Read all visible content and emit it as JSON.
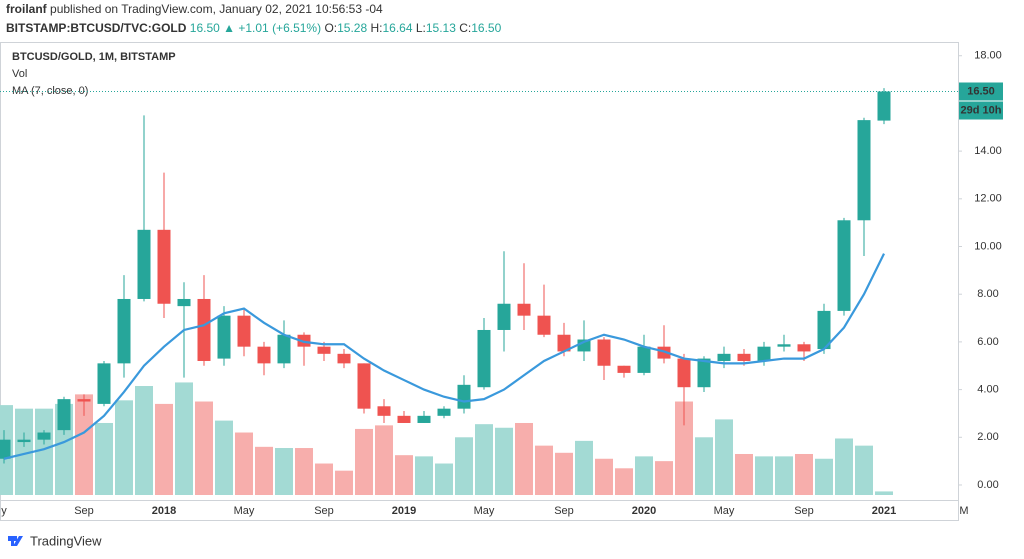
{
  "header": {
    "publisher": "froilanf",
    "published": "published on TradingView.com, January 02, 2021 10:56:53 -04",
    "symbol": "BITSTAMP:BTCUSD/TVC:GOLD",
    "last": "16.50",
    "change": "▲ +1.01 (+6.51%)",
    "o_label": "O:",
    "o": "15.28",
    "h_label": "H:",
    "h": "16.64",
    "l_label": "L:",
    "l": "15.13",
    "c_label": "C:",
    "c": "16.50"
  },
  "chart_data": {
    "type": "candlestick",
    "legend": [
      "BTCUSD/GOLD, 1M, BITSTAMP",
      "Vol",
      "MA (7, close, 0)"
    ],
    "categories": [
      "y",
      null,
      null,
      null,
      "Sep",
      null,
      null,
      null,
      "2018",
      null,
      null,
      null,
      "May",
      null,
      null,
      null,
      "Sep",
      null,
      null,
      null,
      "2019",
      null,
      null,
      null,
      "May",
      null,
      null,
      null,
      "Sep",
      null,
      null,
      null,
      "2020",
      null,
      null,
      null,
      "May",
      null,
      null,
      null,
      "Sep",
      null,
      null,
      null,
      "2021",
      null,
      null,
      null,
      "M"
    ],
    "open": [
      1.1,
      1.8,
      1.9,
      2.3,
      3.6,
      3.4,
      5.1,
      7.8,
      10.7,
      7.5,
      7.8,
      5.3,
      7.1,
      5.8,
      5.1,
      6.3,
      5.8,
      5.5,
      5.1,
      3.3,
      2.9,
      2.6,
      2.9,
      3.2,
      4.1,
      6.5,
      7.6,
      7.1,
      6.3,
      5.6,
      6.1,
      5.0,
      4.7,
      5.8,
      5.3,
      4.1,
      5.2,
      5.5,
      5.2,
      5.8,
      5.9,
      5.7,
      7.3,
      11.1,
      15.28,
      null,
      null,
      null,
      null
    ],
    "high": [
      2.3,
      2.2,
      2.3,
      3.7,
      3.8,
      5.2,
      8.8,
      15.5,
      13.1,
      8.5,
      8.8,
      7.5,
      7.4,
      6.0,
      6.9,
      6.4,
      6.0,
      5.7,
      5.1,
      3.6,
      3.1,
      3.1,
      3.3,
      4.6,
      7.0,
      9.8,
      9.3,
      8.4,
      6.8,
      6.9,
      6.2,
      5.0,
      6.3,
      6.7,
      5.5,
      5.4,
      5.8,
      5.7,
      6.0,
      6.3,
      6.0,
      7.6,
      11.2,
      15.4,
      16.64,
      null,
      null,
      null,
      null
    ],
    "low": [
      0.9,
      1.6,
      1.7,
      2.1,
      2.9,
      3.3,
      4.5,
      7.7,
      7.0,
      4.5,
      5.0,
      5.0,
      5.4,
      4.6,
      4.9,
      5.0,
      5.2,
      4.9,
      3.0,
      2.6,
      2.6,
      2.6,
      2.8,
      3.0,
      4.0,
      5.6,
      6.5,
      6.2,
      5.4,
      5.2,
      4.4,
      4.5,
      4.6,
      5.1,
      2.5,
      3.9,
      4.9,
      5.0,
      5.0,
      5.6,
      5.2,
      5.5,
      7.1,
      9.6,
      15.13,
      null,
      null,
      null,
      null
    ],
    "close": [
      1.9,
      1.9,
      2.2,
      3.6,
      3.5,
      5.1,
      7.8,
      10.7,
      7.6,
      7.8,
      5.2,
      7.1,
      5.8,
      5.1,
      6.3,
      5.8,
      5.5,
      5.1,
      3.2,
      2.9,
      2.6,
      2.9,
      3.2,
      4.2,
      6.5,
      7.6,
      7.1,
      6.3,
      5.6,
      6.1,
      5.0,
      4.7,
      5.8,
      5.3,
      4.1,
      5.3,
      5.5,
      5.2,
      5.8,
      5.9,
      5.6,
      7.3,
      11.1,
      15.3,
      16.5,
      null,
      null,
      null,
      null
    ],
    "volume": {
      "name": "Vol",
      "values": [
        3.77,
        3.62,
        3.62,
        3.82,
        4.22,
        3.02,
        3.97,
        4.57,
        3.82,
        4.72,
        3.92,
        3.12,
        2.62,
        2.02,
        1.97,
        1.97,
        1.32,
        1.02,
        2.77,
        2.92,
        1.67,
        1.62,
        1.32,
        2.42,
        2.97,
        2.82,
        3.02,
        2.07,
        1.77,
        2.27,
        1.52,
        1.12,
        1.62,
        1.42,
        3.92,
        2.42,
        3.17,
        1.72,
        1.62,
        1.62,
        1.72,
        1.52,
        2.37,
        2.07,
        0.15,
        null,
        null,
        null,
        null
      ],
      "up_color": "#a3dad4",
      "down_color": "#f7aeac"
    },
    "ma": {
      "name": "MA (7, close, 0)",
      "color": "#3a99dc",
      "values": [
        1.1,
        1.3,
        1.5,
        1.8,
        2.2,
        2.9,
        3.9,
        5.0,
        5.8,
        6.5,
        6.7,
        7.2,
        7.4,
        6.8,
        6.3,
        6.0,
        5.9,
        5.9,
        5.3,
        4.8,
        4.4,
        4.0,
        3.7,
        3.5,
        3.6,
        4.0,
        4.6,
        5.2,
        5.6,
        6.0,
        6.3,
        6.1,
        5.8,
        5.6,
        5.3,
        5.2,
        5.1,
        5.1,
        5.2,
        5.3,
        5.3,
        5.7,
        6.6,
        8.0,
        9.7,
        null,
        null,
        null,
        null
      ]
    },
    "up_color": "#26a69a",
    "down_color": "#ef5350",
    "price_label": "16.50",
    "countdown_label": "29d 10h",
    "ylim": [
      -0.42,
      18.45
    ],
    "yticks": [
      {
        "value": 0,
        "label": "0.00"
      },
      {
        "value": 2,
        "label": "2.00"
      },
      {
        "value": 4,
        "label": "4.00"
      },
      {
        "value": 6,
        "label": "6.00"
      },
      {
        "value": 8,
        "label": "8.00"
      },
      {
        "value": 10,
        "label": "10.00"
      },
      {
        "value": 12,
        "label": "12.00"
      },
      {
        "value": 14,
        "label": "14.00"
      },
      {
        "value": 18,
        "label": "18.00"
      }
    ],
    "grid": false
  },
  "footer": {
    "brand": "TradingView"
  }
}
